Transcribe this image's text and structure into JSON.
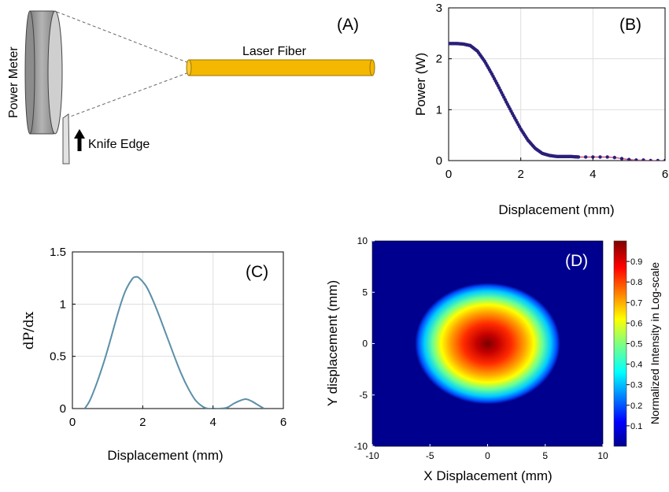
{
  "panel_a": {
    "label": "(A)",
    "power_meter_label": "Power Meter",
    "fiber_label": "Laser Fiber",
    "knife_label": "Knife Edge",
    "colors": {
      "fiber": "#f5b800",
      "fiber_edge": "#9c7400",
      "meter": "#9a9a9a",
      "meter_front": "#cfcfcf",
      "knife": "#e2e2e2"
    }
  },
  "chart_data": [
    {
      "id": "B",
      "type": "scatter",
      "panel_label": "(B)",
      "xlabel": "Displacement (mm)",
      "ylabel": "Power (W)",
      "xlim": [
        0,
        6
      ],
      "ylim": [
        0,
        3
      ],
      "xticks": [
        "0",
        "2",
        "4",
        "6"
      ],
      "yticks": [
        "0",
        "1",
        "2",
        "3"
      ],
      "grid": true,
      "marker_color": "#2a1f7a",
      "line_color": "#d0507a",
      "x": [
        0.0,
        0.2,
        0.4,
        0.6,
        0.8,
        1.0,
        1.2,
        1.4,
        1.6,
        1.8,
        2.0,
        2.2,
        2.4,
        2.6,
        2.8,
        3.0,
        3.2,
        3.4,
        3.6,
        3.8,
        4.0,
        4.2,
        4.4,
        4.6,
        4.8,
        5.0,
        5.2,
        5.4,
        5.6,
        5.8,
        6.0
      ],
      "y": [
        2.3,
        2.3,
        2.29,
        2.26,
        2.15,
        1.95,
        1.7,
        1.43,
        1.15,
        0.88,
        0.62,
        0.4,
        0.24,
        0.14,
        0.1,
        0.08,
        0.08,
        0.08,
        0.07,
        0.07,
        0.07,
        0.07,
        0.07,
        0.06,
        0.04,
        0.02,
        0.01,
        0.01,
        0.0,
        0.0,
        0.0
      ]
    },
    {
      "id": "C",
      "type": "line",
      "panel_label": "(C)",
      "xlabel": "Displacement (mm)",
      "ylabel": "dP/dx",
      "xlim": [
        0,
        6
      ],
      "ylim": [
        0,
        1.5
      ],
      "xticks": [
        "0",
        "2",
        "4",
        "6"
      ],
      "yticks": [
        "0",
        "0.5",
        "1",
        "1.5"
      ],
      "grid": true,
      "line_color": "#5b8fa8",
      "x": [
        0.35,
        0.5,
        0.7,
        0.9,
        1.1,
        1.3,
        1.5,
        1.7,
        1.8,
        1.9,
        2.1,
        2.3,
        2.5,
        2.7,
        2.9,
        3.1,
        3.3,
        3.5,
        3.7,
        3.85,
        4.0,
        4.2,
        4.4,
        4.6,
        4.8,
        4.95,
        5.1,
        5.3,
        5.45
      ],
      "y": [
        0.0,
        0.08,
        0.25,
        0.45,
        0.68,
        0.92,
        1.12,
        1.24,
        1.26,
        1.25,
        1.17,
        1.03,
        0.86,
        0.68,
        0.5,
        0.33,
        0.19,
        0.08,
        0.02,
        0.0,
        0.0,
        0.0,
        0.01,
        0.05,
        0.08,
        0.09,
        0.07,
        0.03,
        0.0
      ]
    },
    {
      "id": "D",
      "type": "heatmap",
      "panel_label": "(D)",
      "xlabel": "X Displacement (mm)",
      "ylabel": "Y displacement (mm)",
      "xlim": [
        -10,
        10
      ],
      "ylim": [
        -10,
        10
      ],
      "xticks": [
        "-10",
        "-5",
        "0",
        "5",
        "10"
      ],
      "yticks": [
        "10",
        "5",
        "0",
        "-5",
        "-10"
      ],
      "colorbar_label": "Normalized Intensity in Log-scale",
      "colorbar_ticks": [
        "0.9",
        "0.8",
        "0.7",
        "0.6",
        "0.5",
        "0.4",
        "0.3",
        "0.2",
        "0.1"
      ],
      "colormap": "jet",
      "center": [
        0,
        0
      ],
      "radius_x_mm": 6.3,
      "radius_y_mm": 5.9
    }
  ]
}
